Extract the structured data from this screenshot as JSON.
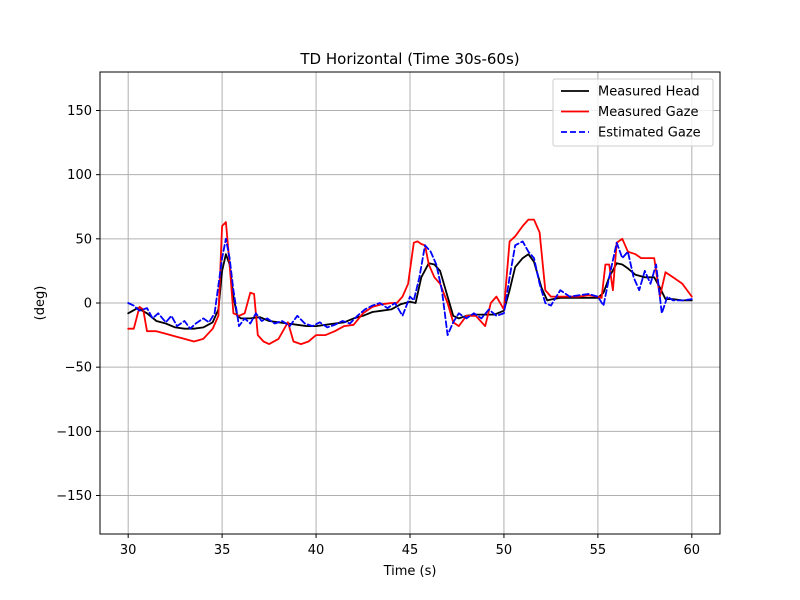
{
  "chart_data": {
    "type": "line",
    "title": "TD Horizontal (Time 30s-60s)",
    "xlabel": "Time (s)",
    "ylabel": "(deg)",
    "xlim": [
      28.5,
      61.5
    ],
    "ylim": [
      -180,
      180
    ],
    "xticks": [
      30,
      35,
      40,
      45,
      50,
      55,
      60
    ],
    "yticks": [
      -150,
      -100,
      -50,
      0,
      50,
      100,
      150
    ],
    "grid": true,
    "legend_position": "top-right",
    "series": [
      {
        "name": "Measured Head",
        "color": "#000000",
        "dash": "solid",
        "x": [
          30,
          30.5,
          31,
          31.5,
          32,
          32.5,
          33,
          33.5,
          34,
          34.5,
          34.8,
          35,
          35.2,
          35.4,
          35.6,
          35.8,
          36,
          36.5,
          37,
          37.5,
          38,
          38.5,
          39,
          39.5,
          40,
          40.5,
          41,
          41.5,
          42,
          42.5,
          43,
          43.5,
          44,
          44.5,
          45,
          45.3,
          45.6,
          46,
          46.3,
          46.6,
          47,
          47.3,
          47.6,
          48,
          48.5,
          49,
          49.5,
          50,
          50.3,
          50.6,
          51,
          51.3,
          51.6,
          52,
          52.3,
          52.6,
          53,
          53.5,
          54,
          54.5,
          55,
          55.3,
          55.6,
          56,
          56.3,
          56.6,
          57,
          57.5,
          58,
          58.3,
          58.6,
          59,
          59.5,
          60
        ],
        "y": [
          -8,
          -4,
          -8,
          -14,
          -16,
          -19,
          -20,
          -20,
          -19,
          -15,
          -5,
          25,
          38,
          30,
          5,
          -10,
          -12,
          -12,
          -11,
          -14,
          -15,
          -16,
          -17,
          -18,
          -18,
          -17,
          -16,
          -15,
          -12,
          -10,
          -7,
          -6,
          -5,
          -1,
          1,
          0,
          20,
          31,
          30,
          25,
          5,
          -10,
          -12,
          -10,
          -9,
          -9,
          -9,
          -6,
          10,
          28,
          35,
          38,
          32,
          12,
          2,
          3,
          4,
          4,
          4,
          4,
          4,
          8,
          20,
          31,
          30,
          27,
          22,
          20,
          20,
          12,
          3,
          3,
          2,
          2
        ]
      },
      {
        "name": "Measured Gaze",
        "color": "#ff0000",
        "dash": "solid",
        "x": [
          30,
          30.3,
          30.6,
          30.8,
          31,
          31.5,
          32,
          32.5,
          33,
          33.5,
          34,
          34.5,
          34.8,
          35,
          35.2,
          35.4,
          35.6,
          35.9,
          36.2,
          36.5,
          36.7,
          36.9,
          37.2,
          37.5,
          38,
          38.5,
          38.8,
          39.2,
          39.6,
          40,
          40.5,
          41,
          41.5,
          42,
          42.5,
          43,
          43.5,
          44,
          44.3,
          44.6,
          44.9,
          45.2,
          45.4,
          45.6,
          45.8,
          46,
          46.3,
          46.6,
          47,
          47.3,
          47.6,
          48,
          48.5,
          49,
          49.3,
          49.6,
          50,
          50.3,
          50.6,
          51,
          51.3,
          51.6,
          51.9,
          52.2,
          52.5,
          53,
          53.5,
          54,
          54.5,
          55,
          55.2,
          55.4,
          55.6,
          55.8,
          56,
          56.3,
          56.6,
          57,
          57.3,
          57.6,
          58,
          58.3,
          58.6,
          59,
          59.5,
          60
        ],
        "y": [
          -20,
          -20,
          -3,
          -5,
          -22,
          -22,
          -24,
          -26,
          -28,
          -30,
          -28,
          -20,
          -10,
          60,
          63,
          30,
          -8,
          -10,
          -8,
          8,
          7,
          -25,
          -30,
          -32,
          -28,
          -15,
          -30,
          -32,
          -30,
          -25,
          -25,
          -22,
          -18,
          -17,
          -8,
          -3,
          -1,
          0,
          0,
          5,
          15,
          47,
          48,
          46,
          45,
          30,
          20,
          15,
          0,
          -15,
          -18,
          -10,
          -10,
          -18,
          0,
          5,
          -5,
          48,
          52,
          60,
          65,
          65,
          55,
          10,
          5,
          5,
          5,
          5,
          6,
          5,
          4,
          30,
          30,
          10,
          47,
          50,
          40,
          38,
          35,
          35,
          35,
          5,
          24,
          20,
          15,
          5
        ]
      },
      {
        "name": "Estimated Gaze",
        "color": "#0000ff",
        "dash": "dashed",
        "x": [
          30,
          30.3,
          30.6,
          31,
          31.3,
          31.6,
          32,
          32.3,
          32.6,
          33,
          33.3,
          33.6,
          34,
          34.3,
          34.6,
          35,
          35.2,
          35.4,
          35.6,
          35.9,
          36.2,
          36.5,
          36.8,
          37.1,
          37.4,
          37.8,
          38.2,
          38.6,
          39,
          39.4,
          39.8,
          40.2,
          40.6,
          41,
          41.4,
          41.8,
          42.2,
          42.6,
          43,
          43.4,
          43.8,
          44.2,
          44.6,
          45,
          45.2,
          45.5,
          45.8,
          46.1,
          46.4,
          46.7,
          47,
          47.3,
          47.6,
          48,
          48.4,
          48.8,
          49.2,
          49.6,
          50,
          50.3,
          50.6,
          51,
          51.3,
          51.6,
          51.9,
          52.2,
          52.5,
          53,
          53.5,
          54,
          54.5,
          55,
          55.3,
          55.6,
          56,
          56.3,
          56.6,
          56.9,
          57.2,
          57.5,
          57.8,
          58.1,
          58.4,
          58.7,
          59,
          59.5,
          60
        ],
        "y": [
          0,
          -2,
          -6,
          -4,
          -12,
          -8,
          -15,
          -10,
          -18,
          -14,
          -20,
          -16,
          -12,
          -15,
          -8,
          35,
          50,
          35,
          10,
          -18,
          -12,
          -16,
          -8,
          -14,
          -12,
          -16,
          -14,
          -18,
          -10,
          -16,
          -18,
          -15,
          -19,
          -17,
          -14,
          -16,
          -10,
          -5,
          -2,
          0,
          -4,
          0,
          -10,
          5,
          2,
          20,
          45,
          40,
          30,
          10,
          -25,
          -15,
          -8,
          -12,
          -8,
          -12,
          -5,
          -10,
          -8,
          20,
          45,
          48,
          40,
          35,
          15,
          0,
          -2,
          10,
          5,
          6,
          7,
          5,
          -2,
          20,
          47,
          35,
          40,
          20,
          10,
          25,
          15,
          30,
          -8,
          5,
          2,
          2,
          3
        ]
      }
    ]
  }
}
